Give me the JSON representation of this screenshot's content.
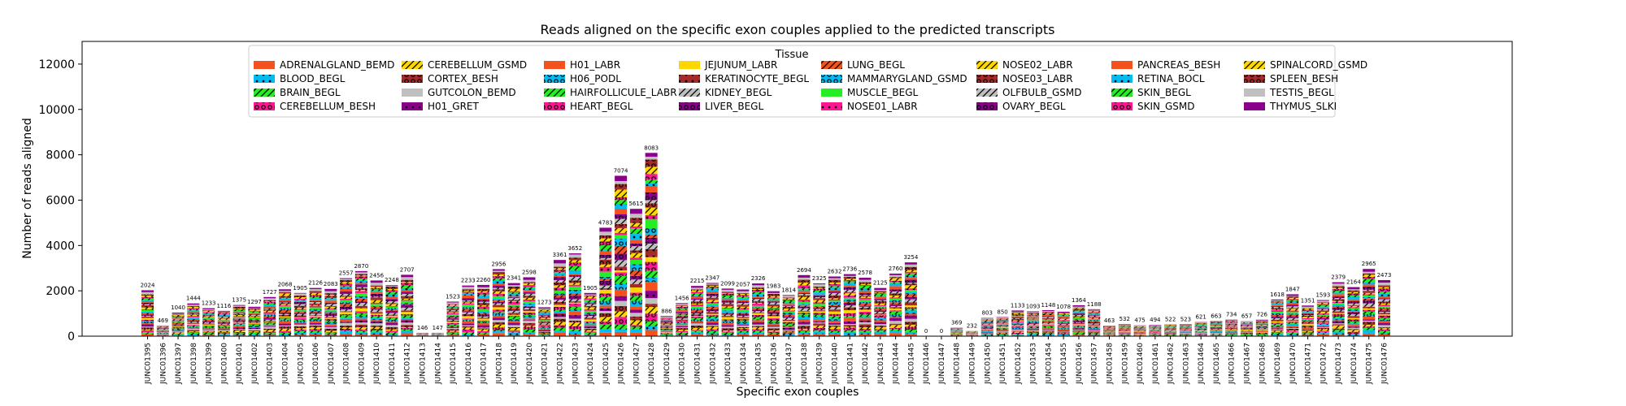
{
  "chart_data": {
    "type": "bar",
    "stacked": true,
    "title": "Reads aligned on the specific exon couples applied to the predicted transcripts",
    "xlabel": "Specific exon couples",
    "ylabel": "Number of reads aligned",
    "ylim": [
      0,
      13000
    ],
    "yticks": [
      0,
      2000,
      4000,
      6000,
      8000,
      10000,
      12000
    ],
    "grid": false,
    "legend": {
      "title": "Tissue",
      "placement": "top-center",
      "columns": 8
    },
    "categories": [
      "JUNC01395",
      "JUNC01396",
      "JUNC01397",
      "JUNC01398",
      "JUNC01399",
      "JUNC01400",
      "JUNC01401",
      "JUNC01402",
      "JUNC01403",
      "JUNC01404",
      "JUNC01405",
      "JUNC01406",
      "JUNC01407",
      "JUNC01408",
      "JUNC01409",
      "JUNC01410",
      "JUNC01411",
      "JUNC01412",
      "JUNC01413",
      "JUNC01414",
      "JUNC01415",
      "JUNC01416",
      "JUNC01417",
      "JUNC01418",
      "JUNC01419",
      "JUNC01420",
      "JUNC01421",
      "JUNC01422",
      "JUNC01423",
      "JUNC01424",
      "JUNC01425",
      "JUNC01426",
      "JUNC01427",
      "JUNC01428",
      "JUNC01429",
      "JUNC01430",
      "JUNC01431",
      "JUNC01432",
      "JUNC01433",
      "JUNC01434",
      "JUNC01435",
      "JUNC01436",
      "JUNC01437",
      "JUNC01438",
      "JUNC01439",
      "JUNC01440",
      "JUNC01441",
      "JUNC01442",
      "JUNC01443",
      "JUNC01444",
      "JUNC01445",
      "JUNC01446",
      "JUNC01447",
      "JUNC01448",
      "JUNC01449",
      "JUNC01450",
      "JUNC01451",
      "JUNC01452",
      "JUNC01453",
      "JUNC01454",
      "JUNC01455",
      "JUNC01456",
      "JUNC01457",
      "JUNC01458",
      "JUNC01459",
      "JUNC01460",
      "JUNC01461",
      "JUNC01462",
      "JUNC01463",
      "JUNC01464",
      "JUNC01465",
      "JUNC01466",
      "JUNC01467",
      "JUNC01468",
      "JUNC01469",
      "JUNC01470",
      "JUNC01471",
      "JUNC01472",
      "JUNC01473",
      "JUNC01474",
      "JUNC01475",
      "JUNC01476"
    ],
    "totals": [
      2024,
      469,
      1040,
      1444,
      1233,
      1116,
      1375,
      1297,
      1727,
      2068,
      1905,
      2126,
      2083,
      2557,
      2870,
      2456,
      2248,
      2707,
      146,
      147,
      1523,
      2233,
      2260,
      2956,
      2341,
      2598,
      1273,
      3361,
      3652,
      1905,
      4783,
      7074,
      5615,
      8083,
      886,
      1456,
      2215,
      2347,
      2099,
      2057,
      2326,
      1983,
      1814,
      2694,
      2325,
      2632,
      2736,
      2578,
      2125,
      2760,
      3254,
      0,
      0,
      369,
      232,
      803,
      850,
      1133,
      1093,
      1148,
      1078,
      1364,
      1188,
      463,
      532,
      475,
      494,
      522,
      523,
      621,
      663,
      734,
      657,
      726,
      1618,
      1847,
      1351,
      1593,
      2379,
      2164,
      2965,
      2473
    ],
    "series": [
      {
        "name": "ADRENALGLAND_BEMD",
        "color": "#f4511e",
        "pattern": "none"
      },
      {
        "name": "BLOOD_BEGL",
        "color": "#00bcf2",
        "pattern": "dot"
      },
      {
        "name": "BRAIN_BEGL",
        "color": "#22ee22",
        "pattern": "slash"
      },
      {
        "name": "CEREBELLUM_BESH",
        "color": "#ff1493",
        "pattern": "ring"
      },
      {
        "name": "CEREBELLUM_GSMD",
        "color": "#ffd700",
        "pattern": "slash"
      },
      {
        "name": "CORTEX_BESH",
        "color": "#a52a2a",
        "pattern": "ring"
      },
      {
        "name": "GUTCOLON_BEMD",
        "color": "#c0c0c0",
        "pattern": "none"
      },
      {
        "name": "H01_GRET",
        "color": "#8b008b",
        "pattern": "dot"
      },
      {
        "name": "H01_LABR",
        "color": "#f4511e",
        "pattern": "none"
      },
      {
        "name": "H06_PODL",
        "color": "#00bcf2",
        "pattern": "ring"
      },
      {
        "name": "HAIRFOLLICULE_LABR",
        "color": "#22ee22",
        "pattern": "slash"
      },
      {
        "name": "HEART_BEGL",
        "color": "#ff1493",
        "pattern": "ring"
      },
      {
        "name": "JEJUNUM_LABR",
        "color": "#ffd700",
        "pattern": "none"
      },
      {
        "name": "KERATINOCYTE_BEGL",
        "color": "#a52a2a",
        "pattern": "dot"
      },
      {
        "name": "KIDNEY_BEGL",
        "color": "#c0c0c0",
        "pattern": "slash"
      },
      {
        "name": "LIVER_BEGL",
        "color": "#8b008b",
        "pattern": "ring"
      },
      {
        "name": "LUNG_BEGL",
        "color": "#f4511e",
        "pattern": "slash"
      },
      {
        "name": "MAMMARYGLAND_GSMD",
        "color": "#00bcf2",
        "pattern": "ring"
      },
      {
        "name": "MUSCLE_BEGL",
        "color": "#22ee22",
        "pattern": "none"
      },
      {
        "name": "NOSE01_LABR",
        "color": "#ff1493",
        "pattern": "dot"
      },
      {
        "name": "NOSE02_LABR",
        "color": "#ffd700",
        "pattern": "slash"
      },
      {
        "name": "NOSE03_LABR",
        "color": "#a52a2a",
        "pattern": "ring"
      },
      {
        "name": "OLFBULB_GSMD",
        "color": "#c0c0c0",
        "pattern": "slash"
      },
      {
        "name": "OVARY_BEGL",
        "color": "#8b008b",
        "pattern": "ring"
      },
      {
        "name": "PANCREAS_BESH",
        "color": "#f4511e",
        "pattern": "none"
      },
      {
        "name": "RETINA_BOCL",
        "color": "#00bcf2",
        "pattern": "dot"
      },
      {
        "name": "SKIN_BEGL",
        "color": "#22ee22",
        "pattern": "slash"
      },
      {
        "name": "SKIN_GSMD",
        "color": "#ff1493",
        "pattern": "ring"
      },
      {
        "name": "SPINALCORD_GSMD",
        "color": "#ffd700",
        "pattern": "slash"
      },
      {
        "name": "SPLEEN_BESH",
        "color": "#a52a2a",
        "pattern": "ring"
      },
      {
        "name": "TESTIS_BEGL",
        "color": "#c0c0c0",
        "pattern": "none"
      },
      {
        "name": "THYMUS_SLKI",
        "color": "#8b008b",
        "pattern": "none"
      }
    ]
  }
}
